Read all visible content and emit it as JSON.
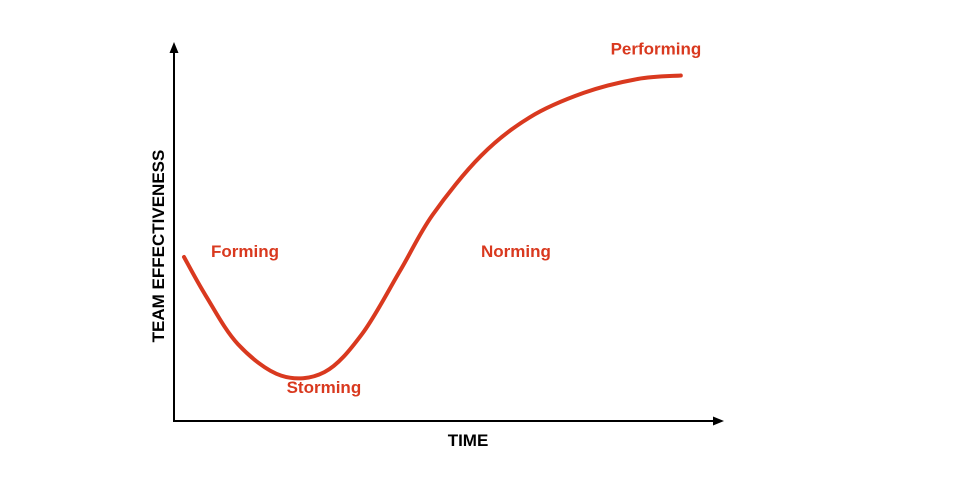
{
  "chart_data": {
    "type": "line",
    "title": "",
    "xlabel": "TIME",
    "ylabel": "TEAM EFFECTIVENESS",
    "grid": false,
    "series": [
      {
        "points": [
          {
            "x": 0.0,
            "y": 0.47
          },
          {
            "x": 0.04,
            "y": 0.36
          },
          {
            "x": 0.1,
            "y": 0.22
          },
          {
            "x": 0.18,
            "y": 0.13
          },
          {
            "x": 0.26,
            "y": 0.14
          },
          {
            "x": 0.33,
            "y": 0.25
          },
          {
            "x": 0.4,
            "y": 0.43
          },
          {
            "x": 0.46,
            "y": 0.59
          },
          {
            "x": 0.55,
            "y": 0.76
          },
          {
            "x": 0.64,
            "y": 0.87
          },
          {
            "x": 0.74,
            "y": 0.94
          },
          {
            "x": 0.84,
            "y": 0.98
          },
          {
            "x": 0.92,
            "y": 0.99
          }
        ]
      }
    ],
    "stage_labels": [
      {
        "text": "Forming",
        "x": 0.05,
        "y": 0.47
      },
      {
        "text": "Storming",
        "x": 0.19,
        "y": 0.08
      },
      {
        "text": "Norming",
        "x": 0.55,
        "y": 0.47
      },
      {
        "text": "Performing",
        "x": 0.79,
        "y": 1.05
      }
    ],
    "colors": {
      "line": "#d9391f",
      "labels": "#d9391f",
      "axes": "#000000"
    }
  }
}
